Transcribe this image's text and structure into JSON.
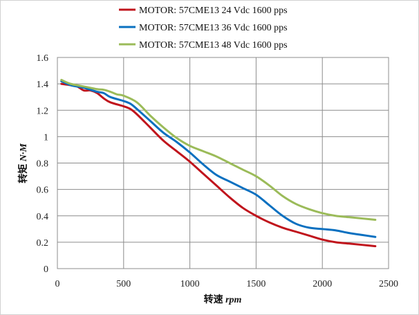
{
  "chart_data": {
    "type": "line",
    "title": "",
    "xlabel": "转速 rpm",
    "xlabel_parts": [
      "转速",
      "rpm"
    ],
    "ylabel": "转矩 N·M",
    "ylabel_parts": [
      "转矩",
      "N·M"
    ],
    "xlim": [
      0,
      2500
    ],
    "ylim": [
      0,
      1.6
    ],
    "xticks": [
      "0",
      "500",
      "1000",
      "1500",
      "2000",
      "2500"
    ],
    "yticks": [
      "0",
      "0.2",
      "0.4",
      "0.6",
      "0.8",
      "1",
      "1.2",
      "1.4",
      "1.6"
    ],
    "grid": true,
    "legend_position": "top-center",
    "series": [
      {
        "name": "MOTOR: 57CME13 24 Vdc  1600 pps",
        "color": "#C0141C",
        "x": [
          30,
          100,
          150,
          200,
          250,
          300,
          350,
          400,
          500,
          550,
          600,
          700,
          800,
          900,
          1000,
          1100,
          1200,
          1300,
          1400,
          1500,
          1600,
          1700,
          1800,
          1900,
          2000,
          2100,
          2200,
          2300,
          2400
        ],
        "y": [
          1.4,
          1.39,
          1.38,
          1.35,
          1.35,
          1.33,
          1.29,
          1.26,
          1.23,
          1.21,
          1.17,
          1.07,
          0.97,
          0.89,
          0.81,
          0.72,
          0.63,
          0.54,
          0.46,
          0.4,
          0.35,
          0.31,
          0.28,
          0.25,
          0.22,
          0.2,
          0.19,
          0.18,
          0.17
        ]
      },
      {
        "name": "MOTOR: 57CME13 36 Vdc  1600 pps",
        "color": "#0A70C0",
        "x": [
          30,
          100,
          200,
          300,
          350,
          400,
          500,
          550,
          600,
          700,
          800,
          900,
          1000,
          1100,
          1200,
          1300,
          1400,
          1500,
          1600,
          1700,
          1800,
          1900,
          2000,
          2100,
          2200,
          2300,
          2400
        ],
        "y": [
          1.42,
          1.39,
          1.37,
          1.34,
          1.33,
          1.3,
          1.27,
          1.25,
          1.21,
          1.12,
          1.03,
          0.96,
          0.88,
          0.79,
          0.71,
          0.66,
          0.61,
          0.56,
          0.48,
          0.4,
          0.34,
          0.31,
          0.3,
          0.29,
          0.27,
          0.255,
          0.24
        ]
      },
      {
        "name": "MOTOR: 57CME13 48 Vdc  1600 pps",
        "color": "#9BBB59",
        "x": [
          30,
          100,
          200,
          300,
          350,
          400,
          450,
          500,
          600,
          700,
          800,
          900,
          1000,
          1100,
          1200,
          1300,
          1400,
          1500,
          1600,
          1700,
          1800,
          1900,
          2000,
          2100,
          2200,
          2300,
          2400
        ],
        "y": [
          1.43,
          1.4,
          1.38,
          1.36,
          1.355,
          1.34,
          1.32,
          1.31,
          1.26,
          1.16,
          1.07,
          0.99,
          0.93,
          0.89,
          0.85,
          0.8,
          0.75,
          0.7,
          0.63,
          0.55,
          0.49,
          0.45,
          0.42,
          0.4,
          0.39,
          0.38,
          0.37
        ]
      }
    ]
  }
}
